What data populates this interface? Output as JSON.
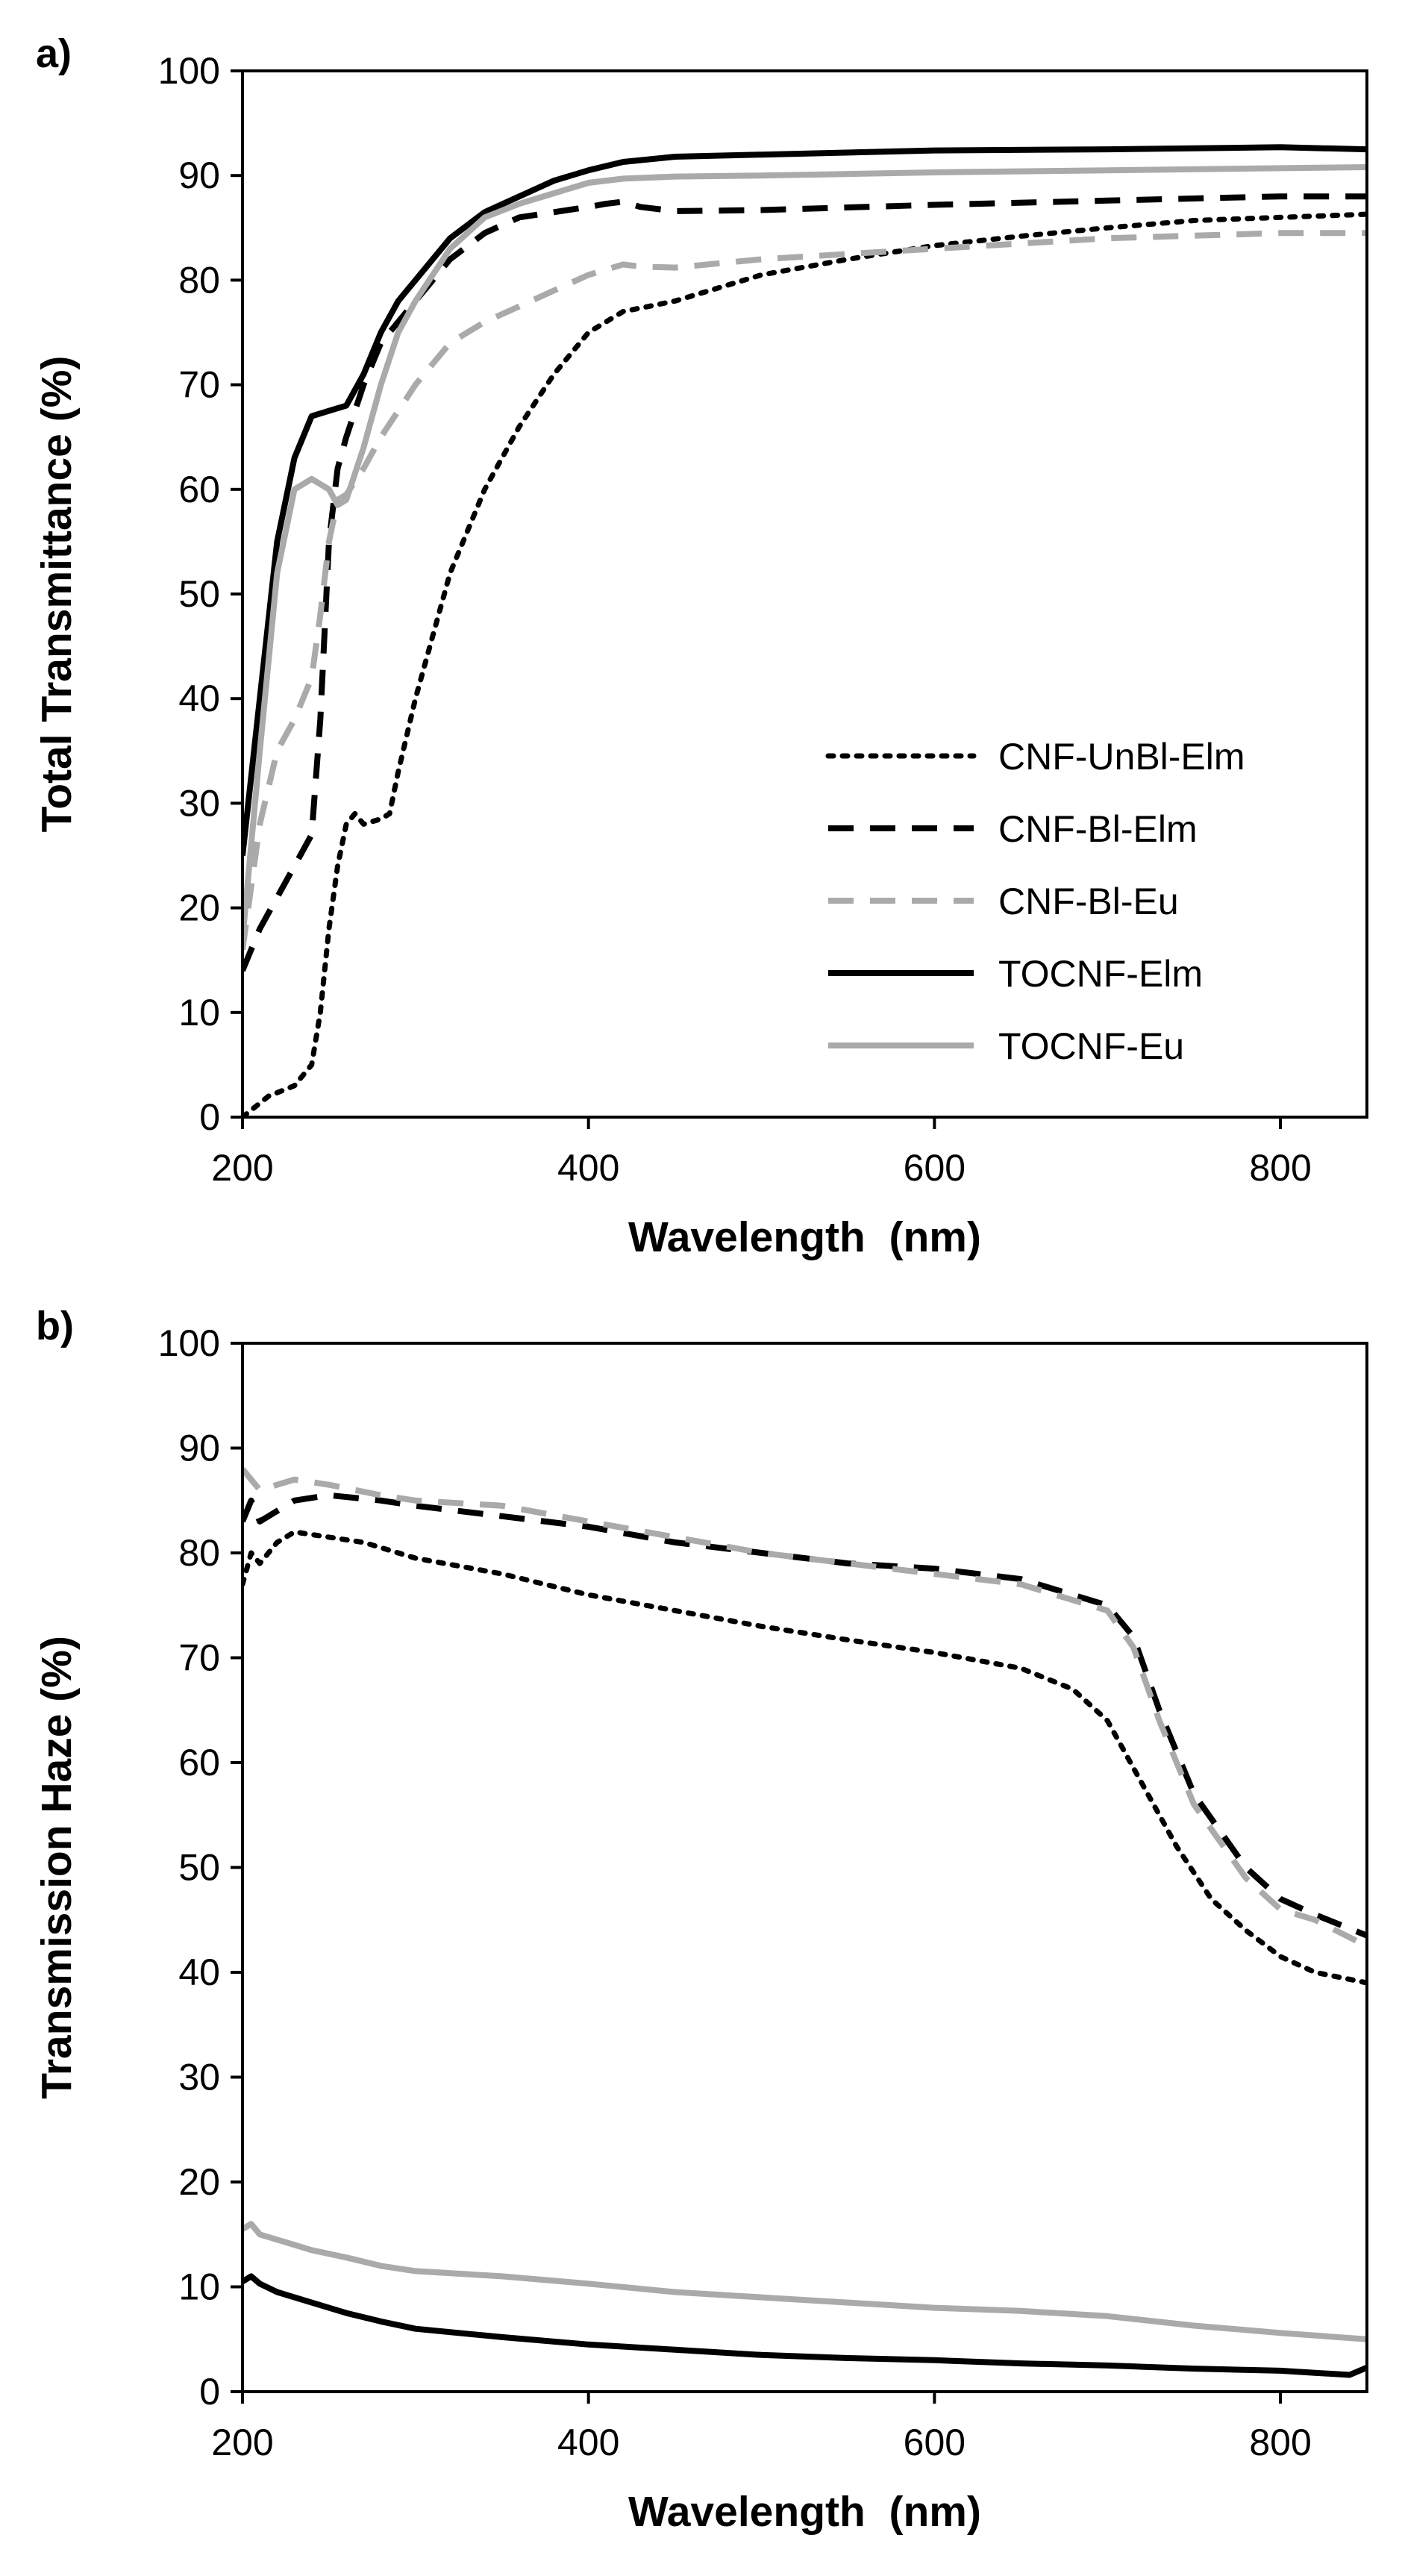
{
  "chart_data": [
    {
      "type": "line",
      "panel_label": "a)",
      "title": "",
      "xlabel": "Wavelength  (nm)",
      "ylabel": "Total Transmittance (%)",
      "xlim": [
        200,
        850
      ],
      "ylim": [
        0,
        100
      ],
      "xticks": [
        200,
        400,
        600,
        800
      ],
      "yticks": [
        0,
        10,
        20,
        30,
        40,
        50,
        60,
        70,
        80,
        90,
        100
      ],
      "grid": false,
      "legend": "center-right",
      "series": [
        {
          "name": "CNF-UnBl-Elm",
          "color": "#000000",
          "dash": "dotted",
          "x": [
            200,
            215,
            230,
            240,
            245,
            250,
            255,
            260,
            265,
            270,
            280,
            285,
            290,
            300,
            320,
            340,
            360,
            380,
            400,
            420,
            450,
            500,
            550,
            600,
            650,
            700,
            750,
            800,
            850
          ],
          "y": [
            0,
            2,
            3,
            5,
            10,
            18,
            24,
            28,
            29,
            28,
            28.5,
            29,
            33,
            40,
            52,
            60,
            66,
            71,
            75,
            77,
            78,
            80.5,
            82,
            83.3,
            84.2,
            85,
            85.7,
            86,
            86.3
          ]
        },
        {
          "name": "CNF-Bl-Elm",
          "color": "#000000",
          "dash": "dashed",
          "x": [
            200,
            210,
            220,
            230,
            240,
            245,
            250,
            255,
            260,
            270,
            280,
            300,
            320,
            340,
            360,
            380,
            400,
            410,
            420,
            430,
            450,
            500,
            600,
            700,
            800,
            850
          ],
          "y": [
            14,
            18,
            21,
            24,
            27,
            38,
            55,
            62,
            65,
            70,
            74,
            78,
            82,
            84.5,
            86,
            86.5,
            87,
            87.3,
            87.5,
            87,
            86.6,
            86.7,
            87.2,
            87.6,
            88,
            88
          ]
        },
        {
          "name": "CNF-Bl-Eu",
          "color": "#aaaaaa",
          "dash": "dashed",
          "x": [
            200,
            210,
            220,
            230,
            240,
            245,
            250,
            255,
            260,
            270,
            280,
            300,
            320,
            340,
            360,
            380,
            400,
            420,
            430,
            450,
            500,
            600,
            700,
            800,
            850
          ],
          "y": [
            16,
            28,
            35,
            38,
            42,
            48,
            55,
            59,
            59.5,
            62,
            65,
            70,
            74,
            76,
            77.5,
            79,
            80.5,
            81.5,
            81.3,
            81.2,
            82,
            83,
            84,
            84.5,
            84.5
          ]
        },
        {
          "name": "TOCNF-Elm",
          "color": "#000000",
          "dash": "solid",
          "x": [
            200,
            210,
            220,
            230,
            240,
            250,
            260,
            270,
            280,
            290,
            300,
            320,
            340,
            360,
            380,
            400,
            420,
            450,
            500,
            600,
            700,
            800,
            850
          ],
          "y": [
            25,
            40,
            55,
            63,
            67,
            67.5,
            68,
            71,
            75,
            78,
            80,
            84,
            86.5,
            88,
            89.5,
            90.5,
            91.3,
            91.8,
            92,
            92.4,
            92.5,
            92.7,
            92.5
          ]
        },
        {
          "name": "TOCNF-Eu",
          "color": "#aaaaaa",
          "dash": "solid",
          "x": [
            200,
            210,
            220,
            230,
            240,
            250,
            255,
            260,
            270,
            280,
            290,
            300,
            320,
            340,
            360,
            380,
            400,
            420,
            450,
            500,
            600,
            700,
            800,
            850
          ],
          "y": [
            17,
            35,
            52,
            60,
            61,
            60,
            58.5,
            59,
            64,
            70,
            75,
            78,
            83,
            86,
            87.3,
            88.3,
            89.3,
            89.7,
            89.9,
            90,
            90.3,
            90.5,
            90.7,
            90.8
          ]
        }
      ]
    },
    {
      "type": "line",
      "panel_label": "b)",
      "title": "",
      "xlabel": "Wavelength  (nm)",
      "ylabel": "Transmission Haze (%)",
      "xlim": [
        200,
        850
      ],
      "ylim": [
        0,
        100
      ],
      "xticks": [
        200,
        400,
        600,
        800
      ],
      "yticks": [
        0,
        10,
        20,
        30,
        40,
        50,
        60,
        70,
        80,
        90,
        100
      ],
      "grid": false,
      "legend": "none",
      "series": [
        {
          "name": "CNF-UnBl-Elm",
          "color": "#000000",
          "dash": "dotted",
          "x": [
            200,
            205,
            210,
            220,
            230,
            250,
            270,
            300,
            350,
            400,
            450,
            500,
            550,
            600,
            650,
            680,
            700,
            720,
            740,
            760,
            780,
            800,
            820,
            850
          ],
          "y": [
            77,
            80,
            79,
            81,
            82,
            81.5,
            81,
            79.5,
            78,
            76,
            74.5,
            73,
            71.7,
            70.5,
            69,
            67,
            64,
            58,
            52,
            47,
            44,
            41.5,
            40,
            39
          ]
        },
        {
          "name": "CNF-Bl-Elm",
          "color": "#000000",
          "dash": "dashed",
          "x": [
            200,
            205,
            210,
            220,
            230,
            250,
            280,
            300,
            350,
            400,
            450,
            500,
            550,
            600,
            650,
            700,
            715,
            730,
            750,
            780,
            800,
            820,
            850
          ],
          "y": [
            83,
            85,
            83,
            84,
            85,
            85.5,
            85,
            84.5,
            83.5,
            82.5,
            81,
            80,
            79,
            78.5,
            77.5,
            75,
            72,
            65,
            57,
            50,
            47,
            45.5,
            43.5
          ]
        },
        {
          "name": "CNF-Bl-Eu",
          "color": "#aaaaaa",
          "dash": "dashed",
          "x": [
            200,
            210,
            220,
            230,
            250,
            280,
            300,
            350,
            400,
            450,
            500,
            550,
            600,
            650,
            700,
            715,
            730,
            750,
            780,
            800,
            820,
            850
          ],
          "y": [
            88,
            86,
            86.5,
            87,
            86.5,
            85.5,
            85,
            84.5,
            83,
            81.5,
            80,
            79,
            78,
            77,
            74.5,
            71,
            64,
            56,
            49,
            46,
            45,
            42.5
          ]
        },
        {
          "name": "TOCNF-Elm",
          "color": "#000000",
          "dash": "solid",
          "x": [
            200,
            205,
            210,
            220,
            240,
            260,
            280,
            300,
            350,
            400,
            450,
            500,
            550,
            600,
            650,
            700,
            750,
            800,
            820,
            840,
            850
          ],
          "y": [
            10.5,
            11,
            10.3,
            9.5,
            8.5,
            7.5,
            6.7,
            6,
            5.2,
            4.5,
            4,
            3.5,
            3.2,
            3,
            2.7,
            2.5,
            2.2,
            2,
            1.8,
            1.6,
            2.3
          ]
        },
        {
          "name": "TOCNF-Eu",
          "color": "#aaaaaa",
          "dash": "solid",
          "x": [
            200,
            205,
            210,
            220,
            240,
            260,
            280,
            300,
            350,
            400,
            450,
            500,
            550,
            600,
            650,
            700,
            750,
            800,
            850
          ],
          "y": [
            15.5,
            16,
            15,
            14.5,
            13.5,
            12.8,
            12,
            11.5,
            11,
            10.3,
            9.5,
            9,
            8.5,
            8,
            7.7,
            7.2,
            6.3,
            5.6,
            5
          ]
        }
      ]
    }
  ]
}
